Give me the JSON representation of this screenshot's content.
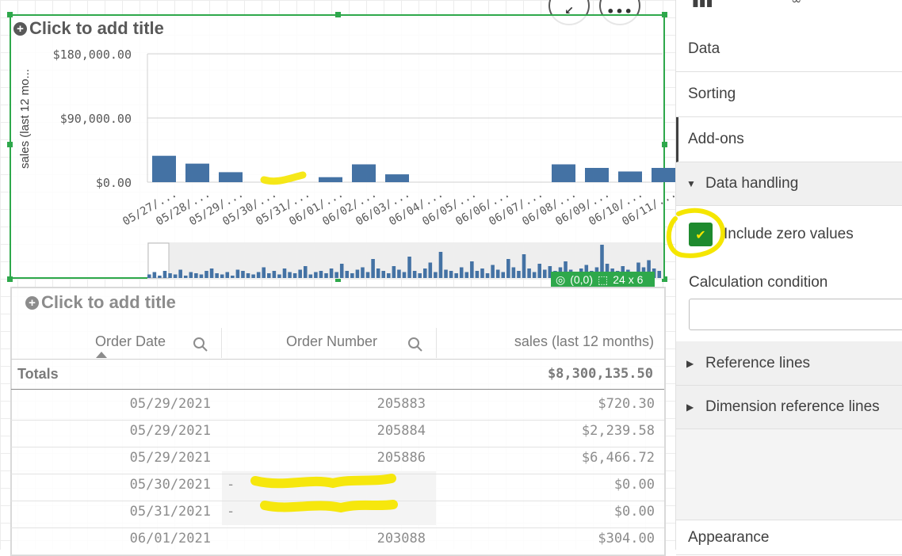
{
  "chart": {
    "title_placeholder": "Click to add title",
    "status_position": "(0,0)",
    "status_size": "24 x 6"
  },
  "chart_data": {
    "type": "bar",
    "ylabel": "sales (last 12 mo...",
    "ylim": [
      0,
      180000
    ],
    "y_ticks": [
      "$180,000.00",
      "$90,000.00",
      "$0.00"
    ],
    "categories": [
      "05/27/...",
      "05/28/...",
      "05/29/...",
      "05/30/...",
      "05/31/...",
      "06/01/...",
      "06/02/...",
      "06/03/...",
      "06/04/...",
      "06/05/...",
      "06/06/...",
      "06/07/...",
      "06/08/...",
      "06/09/...",
      "06/10/...",
      "06/11/..."
    ],
    "values": [
      37000,
      26000,
      14000,
      0,
      0,
      7000,
      25000,
      11000,
      0,
      0,
      0,
      0,
      25000,
      20000,
      15000,
      20000
    ],
    "color": "#4472a4",
    "grid": true,
    "minichart_values": [
      3,
      5,
      2,
      6,
      4,
      3,
      7,
      2,
      5,
      4,
      3,
      6,
      8,
      4,
      3,
      5,
      2,
      7,
      6,
      4,
      3,
      5,
      9,
      4,
      6,
      3,
      8,
      5,
      4,
      7,
      10,
      3,
      5,
      6,
      4,
      8,
      5,
      12,
      6,
      4,
      7,
      9,
      5,
      16,
      8,
      6,
      4,
      10,
      7,
      5,
      18,
      6,
      4,
      8,
      13,
      5,
      22,
      7,
      6,
      4,
      9,
      5,
      14,
      6,
      8,
      4,
      11,
      7,
      5,
      16,
      9,
      6,
      20,
      8,
      5,
      12,
      7,
      10,
      6,
      9,
      14,
      7,
      5,
      8,
      11,
      6,
      9,
      28,
      12,
      8,
      6,
      10,
      7,
      5,
      13,
      9,
      15,
      8,
      6
    ]
  },
  "table": {
    "title_placeholder": "Click to add title",
    "columns": [
      "Order Date",
      "Order Number",
      "sales (last 12 months)"
    ],
    "totals_label": "Totals",
    "totals_value": "$8,300,135.50",
    "rows": [
      {
        "date": "05/29/2021",
        "order": "205883",
        "sales": "$720.30"
      },
      {
        "date": "05/29/2021",
        "order": "205884",
        "sales": "$2,239.58"
      },
      {
        "date": "05/29/2021",
        "order": "205886",
        "sales": "$6,466.72"
      },
      {
        "date": "05/30/2021",
        "order": "-",
        "sales": "$0.00"
      },
      {
        "date": "05/31/2021",
        "order": "-",
        "sales": "$0.00"
      },
      {
        "date": "06/01/2021",
        "order": "203088",
        "sales": "$304.00"
      }
    ]
  },
  "panel": {
    "data": "Data",
    "sorting": "Sorting",
    "addons": "Add-ons",
    "data_handling": "Data handling",
    "include_zero": "Include zero values",
    "include_zero_checked": true,
    "calc_condition": "Calculation condition",
    "reference_lines": "Reference lines",
    "dimension_reference_lines": "Dimension reference lines",
    "appearance": "Appearance"
  },
  "colors": {
    "selection_border": "#2ea84b",
    "bar": "#4472a4",
    "highlight": "#f5e600",
    "checkbox": "#1e8a2e"
  }
}
